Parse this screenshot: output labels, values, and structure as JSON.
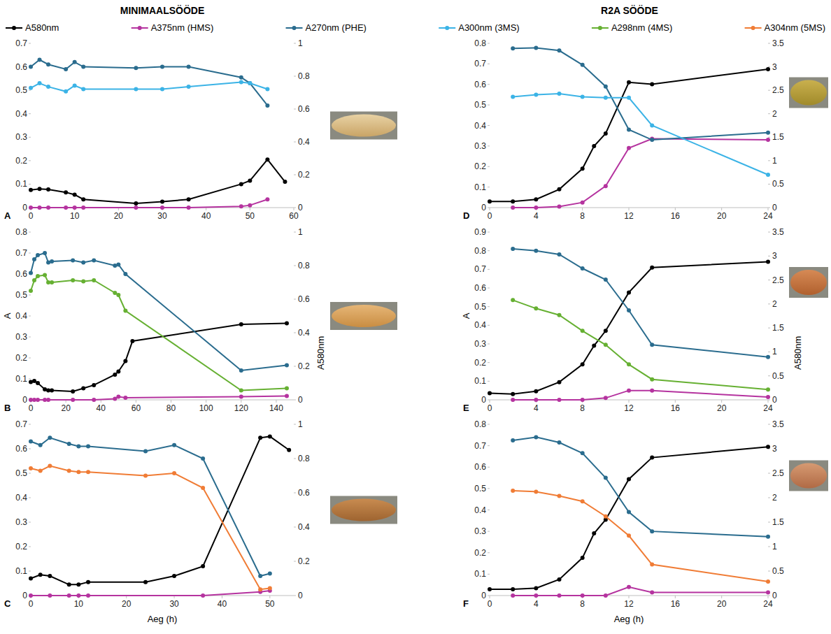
{
  "headers": [
    "MINIMAALSÖÖDE",
    "R2A SÖÖDE"
  ],
  "chart_data": [
    {
      "type": "line",
      "panel": "A",
      "grid": false,
      "legend": "top",
      "marker": "circle",
      "xlim": [
        0,
        60
      ],
      "xticks": [
        0,
        10,
        20,
        30,
        40,
        50,
        60
      ],
      "ylim": [
        0,
        0.7
      ],
      "yticks": [
        0,
        0.1,
        0.2,
        0.3,
        0.4,
        0.5,
        0.6,
        0.7
      ],
      "y2lim": [
        0,
        1
      ],
      "y2ticks": [
        0,
        0.2,
        0.4,
        0.6,
        0.8,
        1
      ],
      "series": [
        {
          "name": "A580nm",
          "color": "#000000",
          "axis": "y2",
          "x": [
            0,
            2,
            4,
            8,
            10,
            12,
            24,
            30,
            36,
            48,
            50,
            54,
            58
          ],
          "values": [
            0.107,
            0.114,
            0.111,
            0.093,
            0.079,
            0.05,
            0.026,
            0.036,
            0.05,
            0.143,
            0.164,
            0.293,
            0.157
          ]
        },
        {
          "name": "A375nm (HMS)",
          "color": "#b5339f",
          "x": [
            0,
            2,
            4,
            8,
            10,
            12,
            24,
            30,
            36,
            48,
            50,
            54
          ],
          "values": [
            0,
            0,
            0,
            0,
            0,
            0,
            0,
            0,
            0,
            0.005,
            0.01,
            0.035
          ]
        },
        {
          "name": "A270nm (PHE)",
          "color": "#2a6c8e",
          "x": [
            0,
            2,
            4,
            8,
            10,
            12,
            24,
            30,
            36,
            48,
            50,
            54
          ],
          "values": [
            0.6,
            0.63,
            0.61,
            0.59,
            0.62,
            0.6,
            0.595,
            0.6,
            0.6,
            0.555,
            0.53,
            0.435
          ]
        },
        {
          "name": "A300nm (3MS)",
          "color": "#3bb3e6",
          "x": [
            0,
            2,
            4,
            8,
            10,
            12,
            24,
            30,
            36,
            48,
            50,
            54
          ],
          "values": [
            0.51,
            0.53,
            0.515,
            0.495,
            0.52,
            0.505,
            0.505,
            0.505,
            0.515,
            0.535,
            0.53,
            0.505
          ]
        }
      ]
    },
    {
      "type": "line",
      "panel": "B",
      "grid": false,
      "legend": "top",
      "marker": "circle",
      "y_label": "A",
      "y2_label": "A580nm",
      "xlim": [
        0,
        150
      ],
      "xticks": [
        0,
        20,
        40,
        60,
        80,
        100,
        120,
        140
      ],
      "ylim": [
        0,
        0.8
      ],
      "yticks": [
        0,
        0.1,
        0.2,
        0.3,
        0.4,
        0.5,
        0.6,
        0.7,
        0.8
      ],
      "y2lim": [
        0,
        1
      ],
      "y2ticks": [
        0,
        0.2,
        0.4,
        0.6,
        0.8,
        1
      ],
      "series": [
        {
          "name": "A580nm",
          "color": "#000000",
          "axis": "y2",
          "x": [
            0,
            2,
            4,
            8,
            10,
            12,
            24,
            30,
            36,
            48,
            50,
            54,
            58,
            120,
            146
          ],
          "values": [
            0.106,
            0.113,
            0.1,
            0.063,
            0.056,
            0.056,
            0.05,
            0.069,
            0.088,
            0.15,
            0.169,
            0.231,
            0.35,
            0.45,
            0.456
          ]
        },
        {
          "name": "A375nm (HMS)",
          "color": "#b5339f",
          "x": [
            0,
            2,
            4,
            8,
            10,
            24,
            36,
            48,
            50,
            54,
            120,
            146
          ],
          "values": [
            0,
            0,
            0,
            0,
            0,
            0,
            0,
            0.005,
            0.015,
            0.01,
            0.015,
            0.018
          ]
        },
        {
          "name": "A270nm (PHE)",
          "color": "#2a6c8e",
          "x": [
            0,
            2,
            4,
            8,
            10,
            12,
            24,
            30,
            36,
            48,
            50,
            54,
            120,
            146
          ],
          "values": [
            0.605,
            0.67,
            0.69,
            0.7,
            0.655,
            0.66,
            0.665,
            0.655,
            0.665,
            0.64,
            0.645,
            0.6,
            0.14,
            0.165
          ]
        },
        {
          "name": "A298nm (4MS)",
          "color": "#66b032",
          "x": [
            0,
            2,
            4,
            8,
            10,
            12,
            24,
            30,
            36,
            48,
            50,
            54,
            120,
            146
          ],
          "values": [
            0.52,
            0.57,
            0.59,
            0.595,
            0.56,
            0.56,
            0.57,
            0.565,
            0.57,
            0.51,
            0.5,
            0.425,
            0.045,
            0.055
          ]
        }
      ]
    },
    {
      "type": "line",
      "panel": "C",
      "grid": false,
      "legend": "top",
      "marker": "circle",
      "x_label": "Aeg (h)",
      "xlim": [
        0,
        55
      ],
      "xticks": [
        0,
        10,
        20,
        30,
        40,
        50
      ],
      "ylim": [
        0,
        0.7
      ],
      "yticks": [
        0,
        0.1,
        0.2,
        0.3,
        0.4,
        0.5,
        0.6,
        0.7
      ],
      "y2lim": [
        0,
        1
      ],
      "y2ticks": [
        0,
        0.2,
        0.4,
        0.6,
        0.8,
        1
      ],
      "series": [
        {
          "name": "A580nm",
          "color": "#000000",
          "axis": "y2",
          "x": [
            0,
            2,
            4,
            8,
            10,
            12,
            24,
            30,
            36,
            48,
            50,
            54
          ],
          "values": [
            0.1,
            0.121,
            0.114,
            0.064,
            0.064,
            0.079,
            0.079,
            0.114,
            0.171,
            0.921,
            0.929,
            0.85
          ]
        },
        {
          "name": "A375nm (HMS)",
          "color": "#b5339f",
          "x": [
            0,
            4,
            8,
            10,
            12,
            36,
            48,
            50
          ],
          "values": [
            0,
            0,
            0,
            0,
            0,
            0,
            0.015,
            0.02
          ]
        },
        {
          "name": "A270nm (PHE)",
          "color": "#2a6c8e",
          "x": [
            0,
            2,
            4,
            8,
            10,
            12,
            24,
            30,
            36,
            48,
            50
          ],
          "values": [
            0.63,
            0.615,
            0.645,
            0.62,
            0.61,
            0.61,
            0.59,
            0.615,
            0.56,
            0.08,
            0.09
          ]
        },
        {
          "name": "A304nm (5MS)",
          "color": "#f07c35",
          "x": [
            0,
            2,
            4,
            8,
            10,
            12,
            24,
            30,
            36,
            48,
            50
          ],
          "values": [
            0.52,
            0.51,
            0.53,
            0.51,
            0.505,
            0.505,
            0.49,
            0.5,
            0.44,
            0.025,
            0.03
          ]
        }
      ]
    },
    {
      "type": "line",
      "panel": "D",
      "grid": false,
      "legend": "top",
      "marker": "circle",
      "xlim": [
        0,
        24
      ],
      "xticks": [
        0,
        4,
        8,
        12,
        16,
        20,
        24
      ],
      "ylim": [
        0,
        0.8
      ],
      "yticks": [
        0,
        0.1,
        0.2,
        0.3,
        0.4,
        0.5,
        0.6,
        0.7,
        0.8
      ],
      "y2lim": [
        0,
        3.5
      ],
      "y2ticks": [
        0,
        0.5,
        1,
        1.5,
        2,
        2.5,
        3,
        3.5
      ],
      "series": [
        {
          "name": "A580nm",
          "color": "#000000",
          "axis": "y2",
          "x": [
            0,
            2,
            4,
            6,
            8,
            9,
            10,
            12,
            14,
            24
          ],
          "values": [
            0.13,
            0.13,
            0.175,
            0.39,
            0.83,
            1.31,
            1.58,
            2.67,
            2.63,
            2.95
          ]
        },
        {
          "name": "A375nm (HMS)",
          "color": "#b5339f",
          "x": [
            2,
            4,
            6,
            8,
            10,
            12,
            14,
            24
          ],
          "values": [
            0,
            0,
            0.005,
            0.025,
            0.105,
            0.29,
            0.335,
            0.33
          ]
        },
        {
          "name": "A270nm (PHE)",
          "color": "#2a6c8e",
          "x": [
            2,
            4,
            6,
            8,
            10,
            12,
            14,
            24
          ],
          "values": [
            0.775,
            0.778,
            0.765,
            0.695,
            0.59,
            0.38,
            0.33,
            0.365
          ]
        },
        {
          "name": "A300nm (3MS)",
          "color": "#3bb3e6",
          "x": [
            2,
            4,
            6,
            8,
            10,
            12,
            14,
            24
          ],
          "values": [
            0.54,
            0.55,
            0.555,
            0.54,
            0.535,
            0.535,
            0.4,
            0.16
          ]
        }
      ]
    },
    {
      "type": "line",
      "panel": "E",
      "grid": false,
      "legend": "top",
      "marker": "circle",
      "y_label": "A",
      "y2_label": "A580nm",
      "xlim": [
        0,
        24
      ],
      "xticks": [
        0,
        4,
        8,
        12,
        16,
        20,
        24
      ],
      "ylim": [
        0,
        0.9
      ],
      "yticks": [
        0,
        0.1,
        0.2,
        0.3,
        0.4,
        0.5,
        0.6,
        0.7,
        0.8,
        0.9
      ],
      "y2lim": [
        0,
        3.5
      ],
      "y2ticks": [
        0,
        0.5,
        1,
        1.5,
        2,
        2.5,
        3,
        3.5
      ],
      "series": [
        {
          "name": "A580nm",
          "color": "#000000",
          "axis": "y2",
          "x": [
            0,
            2,
            4,
            6,
            8,
            9,
            10,
            12,
            14,
            24
          ],
          "values": [
            0.14,
            0.12,
            0.18,
            0.37,
            0.74,
            1.13,
            1.44,
            2.24,
            2.76,
            2.88
          ]
        },
        {
          "name": "A375nm (HMS)",
          "color": "#b5339f",
          "x": [
            2,
            4,
            6,
            8,
            10,
            12,
            14,
            24
          ],
          "values": [
            0,
            0,
            0,
            0,
            0.01,
            0.05,
            0.05,
            0.015
          ]
        },
        {
          "name": "A270nm (PHE)",
          "color": "#2a6c8e",
          "x": [
            2,
            4,
            6,
            8,
            10,
            12,
            14,
            24
          ],
          "values": [
            0.81,
            0.8,
            0.78,
            0.705,
            0.645,
            0.48,
            0.295,
            0.23
          ]
        },
        {
          "name": "A298nm (4MS)",
          "color": "#66b032",
          "x": [
            2,
            4,
            6,
            8,
            10,
            12,
            14,
            24
          ],
          "values": [
            0.535,
            0.49,
            0.455,
            0.37,
            0.295,
            0.19,
            0.11,
            0.055
          ]
        }
      ]
    },
    {
      "type": "line",
      "panel": "F",
      "grid": false,
      "legend": "top",
      "marker": "circle",
      "x_label": "Aeg (h)",
      "xlim": [
        0,
        24
      ],
      "xticks": [
        0,
        4,
        8,
        12,
        16,
        20,
        24
      ],
      "ylim": [
        0,
        0.8
      ],
      "yticks": [
        0,
        0.1,
        0.2,
        0.3,
        0.4,
        0.5,
        0.6,
        0.7,
        0.8
      ],
      "y2lim": [
        0,
        3.5
      ],
      "y2ticks": [
        0,
        0.5,
        1,
        1.5,
        2,
        2.5,
        3,
        3.5
      ],
      "series": [
        {
          "name": "A580nm",
          "color": "#000000",
          "axis": "y2",
          "x": [
            0,
            2,
            4,
            6,
            8,
            9,
            10,
            12,
            14,
            24
          ],
          "values": [
            0.13,
            0.13,
            0.15,
            0.33,
            0.77,
            1.27,
            1.55,
            2.38,
            2.82,
            3.04
          ]
        },
        {
          "name": "A375nm (HMS)",
          "color": "#b5339f",
          "x": [
            2,
            4,
            6,
            8,
            10,
            12,
            14,
            24
          ],
          "values": [
            0,
            0,
            0,
            0,
            0,
            0.04,
            0.015,
            0.015
          ]
        },
        {
          "name": "A270nm (PHE)",
          "color": "#2a6c8e",
          "x": [
            2,
            4,
            6,
            8,
            10,
            12,
            14,
            24
          ],
          "values": [
            0.725,
            0.74,
            0.715,
            0.665,
            0.55,
            0.39,
            0.3,
            0.275
          ]
        },
        {
          "name": "A304nm (5MS)",
          "color": "#f07c35",
          "x": [
            2,
            4,
            6,
            8,
            10,
            12,
            14,
            24
          ],
          "values": [
            0.49,
            0.485,
            0.465,
            0.44,
            0.37,
            0.28,
            0.145,
            0.065
          ]
        }
      ]
    }
  ]
}
